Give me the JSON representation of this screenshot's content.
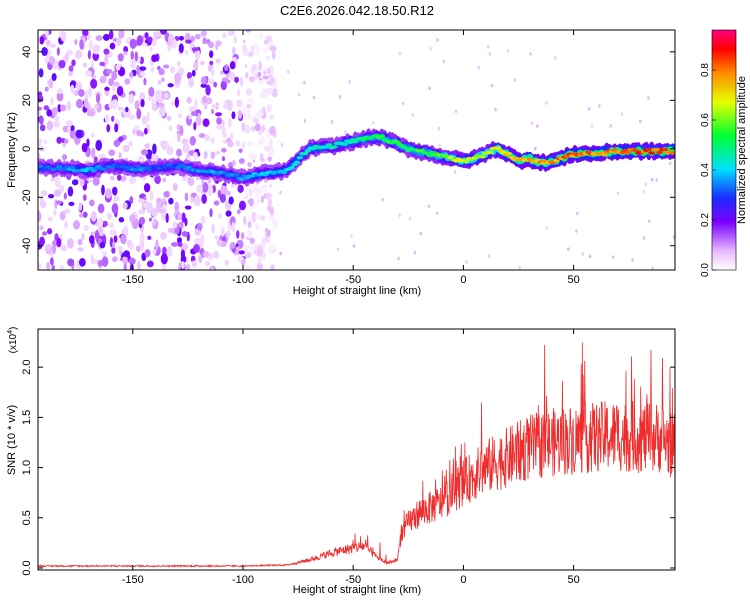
{
  "title": "C2E6.2026.042.18.50.R12",
  "chart_data": [
    {
      "type": "heatmap",
      "xlabel": "Height of straight line (km)",
      "ylabel": "Frequency (Hz)",
      "xlim": [
        -193,
        96
      ],
      "ylim": [
        -50,
        49
      ],
      "x_ticks": [
        -150,
        -100,
        -50,
        0,
        50
      ],
      "y_ticks": [
        -40,
        -20,
        0,
        20,
        40
      ],
      "colorbar": {
        "label": "Normalized spectral amplitude",
        "range": [
          0,
          0.96
        ],
        "ticks": [
          0.0,
          0.2,
          0.4,
          0.6,
          0.8
        ],
        "tick_labels": [
          "0.0",
          "0.2",
          "0.4",
          "0.6",
          "0.8"
        ]
      },
      "ridge": {
        "x": [
          -193,
          -180,
          -170,
          -160,
          -150,
          -140,
          -130,
          -120,
          -110,
          -100,
          -90,
          -80,
          -70,
          -60,
          -50,
          -45,
          -40,
          -35,
          -30,
          -25,
          -20,
          -15,
          -10,
          -5,
          0,
          5,
          10,
          15,
          20,
          25,
          30,
          35,
          40,
          45,
          50,
          60,
          70,
          80,
          90,
          96
        ],
        "freq": [
          -8,
          -8,
          -9,
          -7,
          -8,
          -8,
          -7,
          -9,
          -10,
          -12,
          -10,
          -9,
          0,
          1,
          3,
          4,
          5,
          4,
          2,
          0,
          -1,
          -2,
          -3,
          -4,
          -5,
          -4,
          -2,
          0,
          -2,
          -5,
          -4,
          -6,
          -5,
          -4,
          -2,
          -2,
          -1,
          -1,
          -1,
          -1
        ],
        "amplitude": [
          0.35,
          0.4,
          0.45,
          0.35,
          0.4,
          0.35,
          0.35,
          0.4,
          0.4,
          0.4,
          0.45,
          0.45,
          0.5,
          0.5,
          0.5,
          0.55,
          0.6,
          0.6,
          0.6,
          0.55,
          0.6,
          0.6,
          0.65,
          0.7,
          0.75,
          0.7,
          0.7,
          0.75,
          0.8,
          0.85,
          0.85,
          0.85,
          0.85,
          0.9,
          0.9,
          0.9,
          0.9,
          0.95,
          0.95,
          0.95
        ]
      },
      "noise_region": {
        "x_from": -193,
        "x_to": -100
      }
    },
    {
      "type": "line",
      "xlabel": "Height of straight line (km)",
      "ylabel": "SNR (10 * v/v)",
      "y_multiplier": "(x10",
      "y_multiplier_exp": "4",
      "y_multiplier_close": ")",
      "xlim": [
        -193,
        96
      ],
      "ylim": [
        -0.02,
        2.38
      ],
      "x_ticks": [
        -150,
        -100,
        -50,
        0,
        50
      ],
      "y_ticks": [
        0.0,
        0.5,
        1.0,
        1.5,
        2.0
      ],
      "y_tick_labels": [
        "0.0",
        "0.5",
        "1.0",
        "1.5",
        "2.0"
      ],
      "series": [
        {
          "name": "SNR",
          "color": "#ef2b2b",
          "x": [
            -193,
            -170,
            -150,
            -100,
            -80,
            -70,
            -60,
            -50,
            -45,
            -40,
            -35,
            -30,
            -28,
            -25,
            -20,
            -10,
            0,
            10,
            20,
            30,
            40,
            50,
            60,
            70,
            80,
            90,
            96
          ],
          "values": [
            0.02,
            0.03,
            0.03,
            0.02,
            0.03,
            0.08,
            0.15,
            0.2,
            0.22,
            0.12,
            0.05,
            0.08,
            0.35,
            0.45,
            0.55,
            0.65,
            0.85,
            1.0,
            1.1,
            1.2,
            1.25,
            1.28,
            1.3,
            1.32,
            1.3,
            1.3,
            1.2
          ]
        }
      ]
    }
  ]
}
